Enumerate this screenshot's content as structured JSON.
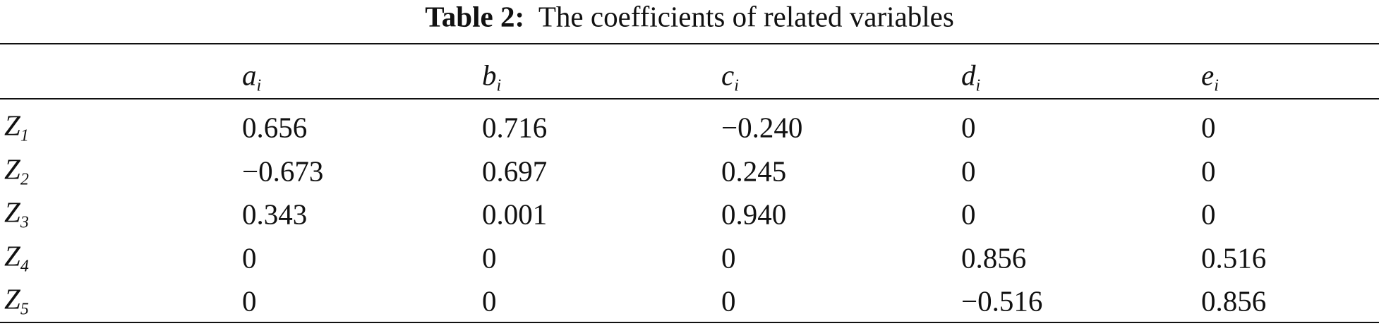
{
  "caption": {
    "label": "Table 2:",
    "text": "The coefficients of related variables"
  },
  "table": {
    "header": [
      {
        "base": "a",
        "sub": "i"
      },
      {
        "base": "b",
        "sub": "i"
      },
      {
        "base": "c",
        "sub": "i"
      },
      {
        "base": "d",
        "sub": "i"
      },
      {
        "base": "e",
        "sub": "i"
      }
    ],
    "rows": [
      {
        "label": {
          "base": "Z",
          "sub": "1"
        },
        "cells": [
          "0.656",
          "0.716",
          "−0.240",
          "0",
          "0"
        ]
      },
      {
        "label": {
          "base": "Z",
          "sub": "2"
        },
        "cells": [
          "−0.673",
          "0.697",
          "0.245",
          "0",
          "0"
        ]
      },
      {
        "label": {
          "base": "Z",
          "sub": "3"
        },
        "cells": [
          "0.343",
          "0.001",
          "0.940",
          "0",
          "0"
        ]
      },
      {
        "label": {
          "base": "Z",
          "sub": "4"
        },
        "cells": [
          "0",
          "0",
          "0",
          "0.856",
          "0.516"
        ]
      },
      {
        "label": {
          "base": "Z",
          "sub": "5"
        },
        "cells": [
          "0",
          "0",
          "0",
          "−0.516",
          "0.856"
        ]
      }
    ]
  }
}
